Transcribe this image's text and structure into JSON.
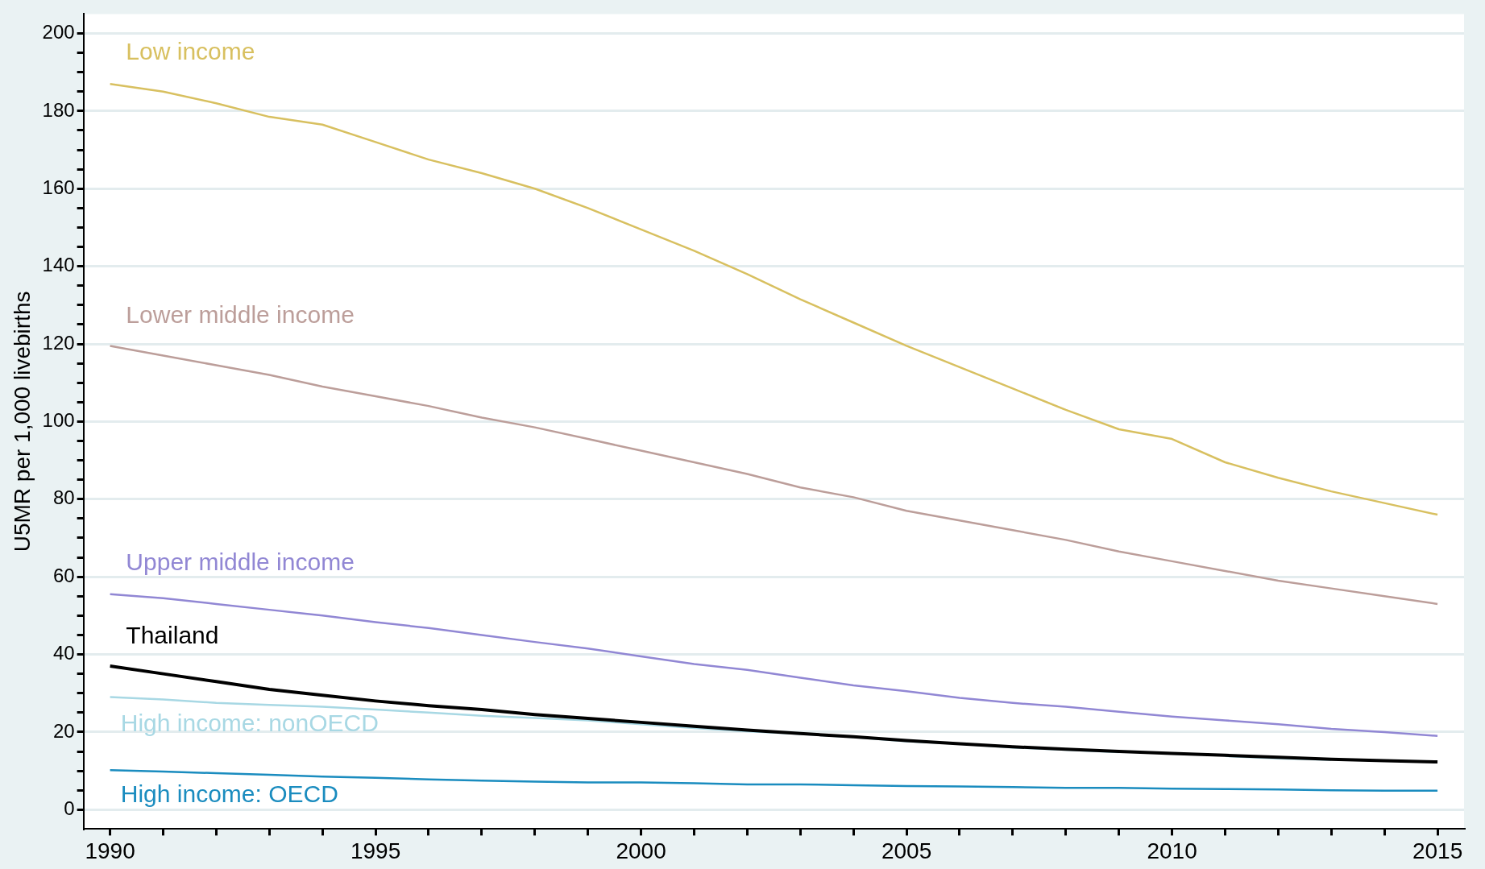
{
  "chart_data": {
    "type": "line",
    "ylabel": "U5MR per 1,000 livebirths",
    "x": [
      1990,
      1991,
      1992,
      1993,
      1994,
      1995,
      1996,
      1997,
      1998,
      1999,
      2000,
      2001,
      2002,
      2003,
      2004,
      2005,
      2006,
      2007,
      2008,
      2009,
      2010,
      2011,
      2012,
      2013,
      2014,
      2015
    ],
    "xlim": [
      1989.5,
      2015.5
    ],
    "xticks": [
      1990,
      {
        "value": 1991,
        "label": null
      },
      {
        "value": 1992,
        "label": null
      },
      {
        "value": 1993,
        "label": null
      },
      {
        "value": 1994,
        "label": null
      },
      1995,
      {
        "value": 1996,
        "label": null
      },
      {
        "value": 1997,
        "label": null
      },
      {
        "value": 1998,
        "label": null
      },
      {
        "value": 1999,
        "label": null
      },
      2000,
      {
        "value": 2001,
        "label": null
      },
      {
        "value": 2002,
        "label": null
      },
      {
        "value": 2003,
        "label": null
      },
      {
        "value": 2004,
        "label": null
      },
      2005,
      {
        "value": 2006,
        "label": null
      },
      {
        "value": 2007,
        "label": null
      },
      {
        "value": 2008,
        "label": null
      },
      {
        "value": 2009,
        "label": null
      },
      2010,
      {
        "value": 2011,
        "label": null
      },
      {
        "value": 2012,
        "label": null
      },
      {
        "value": 2013,
        "label": null
      },
      {
        "value": 2014,
        "label": null
      },
      2015
    ],
    "ylim": [
      -5,
      205
    ],
    "yticks": [
      0,
      {
        "value": 5,
        "label": null
      },
      {
        "value": 10,
        "label": null
      },
      {
        "value": 15,
        "label": null
      },
      20,
      {
        "value": 25,
        "label": null
      },
      {
        "value": 30,
        "label": null
      },
      {
        "value": 35,
        "label": null
      },
      40,
      {
        "value": 45,
        "label": null
      },
      {
        "value": 50,
        "label": null
      },
      {
        "value": 55,
        "label": null
      },
      60,
      {
        "value": 65,
        "label": null
      },
      {
        "value": 70,
        "label": null
      },
      {
        "value": 75,
        "label": null
      },
      80,
      {
        "value": 85,
        "label": null
      },
      {
        "value": 90,
        "label": null
      },
      {
        "value": 95,
        "label": null
      },
      100,
      {
        "value": 105,
        "label": null
      },
      {
        "value": 110,
        "label": null
      },
      {
        "value": 115,
        "label": null
      },
      120,
      {
        "value": 125,
        "label": null
      },
      {
        "value": 130,
        "label": null
      },
      {
        "value": 135,
        "label": null
      },
      140,
      {
        "value": 145,
        "label": null
      },
      {
        "value": 150,
        "label": null
      },
      {
        "value": 155,
        "label": null
      },
      160,
      {
        "value": 165,
        "label": null
      },
      {
        "value": 170,
        "label": null
      },
      {
        "value": 175,
        "label": null
      },
      180,
      {
        "value": 185,
        "label": null
      },
      {
        "value": 190,
        "label": null
      },
      {
        "value": 195,
        "label": null
      },
      200
    ],
    "grid": "y",
    "legend": false,
    "marker": "none",
    "line_style": "solid",
    "series": [
      {
        "name": "Low income",
        "color": "#d8c060",
        "values": [
          187,
          185,
          182,
          178.5,
          176.5,
          172,
          167.5,
          164,
          160,
          155,
          149.5,
          144,
          138,
          131.5,
          125.5,
          119.5,
          114,
          108.5,
          103,
          98,
          95.5,
          89.5,
          85.5,
          82,
          79,
          76
        ]
      },
      {
        "name": "Lower middle income",
        "color": "#bc9e9a",
        "values": [
          119.5,
          117,
          114.5,
          112,
          109,
          106.5,
          104,
          101,
          98.5,
          95.5,
          92.5,
          89.5,
          86.5,
          83,
          80.5,
          77,
          74.5,
          72,
          69.5,
          66.5,
          64,
          61.5,
          59,
          57,
          55,
          53
        ]
      },
      {
        "name": "Upper middle income",
        "color": "#9187d4",
        "values": [
          55.5,
          54.5,
          53,
          51.5,
          50,
          48.3,
          46.8,
          45,
          43.2,
          41.5,
          39.5,
          37.5,
          36,
          34,
          32,
          30.5,
          28.8,
          27.5,
          26.5,
          25.2,
          24,
          23,
          22,
          20.8,
          20,
          19
        ]
      },
      {
        "name": "High income: nonOECD",
        "color": "#a8d8e4",
        "values": [
          29,
          28.4,
          27.5,
          27,
          26.5,
          25.8,
          25,
          24.2,
          23.6,
          23,
          22,
          21,
          20.2,
          19.5,
          18.7,
          17.6,
          17,
          16,
          15.4,
          14.8,
          null,
          13.8,
          13.2,
          12.8,
          null,
          null
        ]
      },
      {
        "name": "Thailand",
        "color": "#000000",
        "values": [
          37,
          35,
          33,
          31,
          29.5,
          28,
          26.8,
          25.8,
          24.5,
          23.5,
          22.5,
          21.5,
          20.5,
          19.6,
          18.8,
          17.8,
          17,
          16.2,
          15.6,
          15,
          14.5,
          14,
          13.5,
          13,
          12.6,
          12.3
        ]
      },
      {
        "name": "High income: OECD",
        "color": "#1a8cbf",
        "values": [
          10.2,
          9.8,
          9.4,
          9,
          8.5,
          8.2,
          7.8,
          7.5,
          7.2,
          7,
          7,
          6.8,
          6.5,
          6.5,
          6.3,
          6.1,
          6,
          5.8,
          5.6,
          5.6,
          5.4,
          5.3,
          5.2,
          5,
          4.9,
          4.9
        ]
      }
    ]
  }
}
